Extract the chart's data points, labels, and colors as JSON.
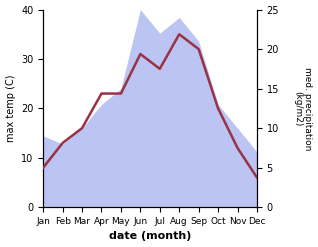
{
  "months": [
    "Jan",
    "Feb",
    "Mar",
    "Apr",
    "May",
    "Jun",
    "Jul",
    "Aug",
    "Sep",
    "Oct",
    "Nov",
    "Dec"
  ],
  "temperature": [
    8,
    13,
    16,
    23,
    23,
    31,
    28,
    35,
    32,
    20,
    12,
    6
  ],
  "precipitation": [
    9,
    8,
    10,
    13,
    15,
    25,
    22,
    24,
    21,
    13,
    10,
    7
  ],
  "temp_color": "#993344",
  "precip_color_fill": "#b0baf0",
  "temp_ylim": [
    0,
    40
  ],
  "precip_ylim": [
    0,
    25
  ],
  "temp_yticks": [
    0,
    10,
    20,
    30,
    40
  ],
  "precip_yticks": [
    0,
    5,
    10,
    15,
    20,
    25
  ],
  "xlabel": "date (month)",
  "ylabel_left": "max temp (C)",
  "ylabel_right": "med. precipitation\n(kg/m2)",
  "linewidth": 1.8,
  "figsize": [
    3.18,
    2.47
  ],
  "dpi": 100
}
